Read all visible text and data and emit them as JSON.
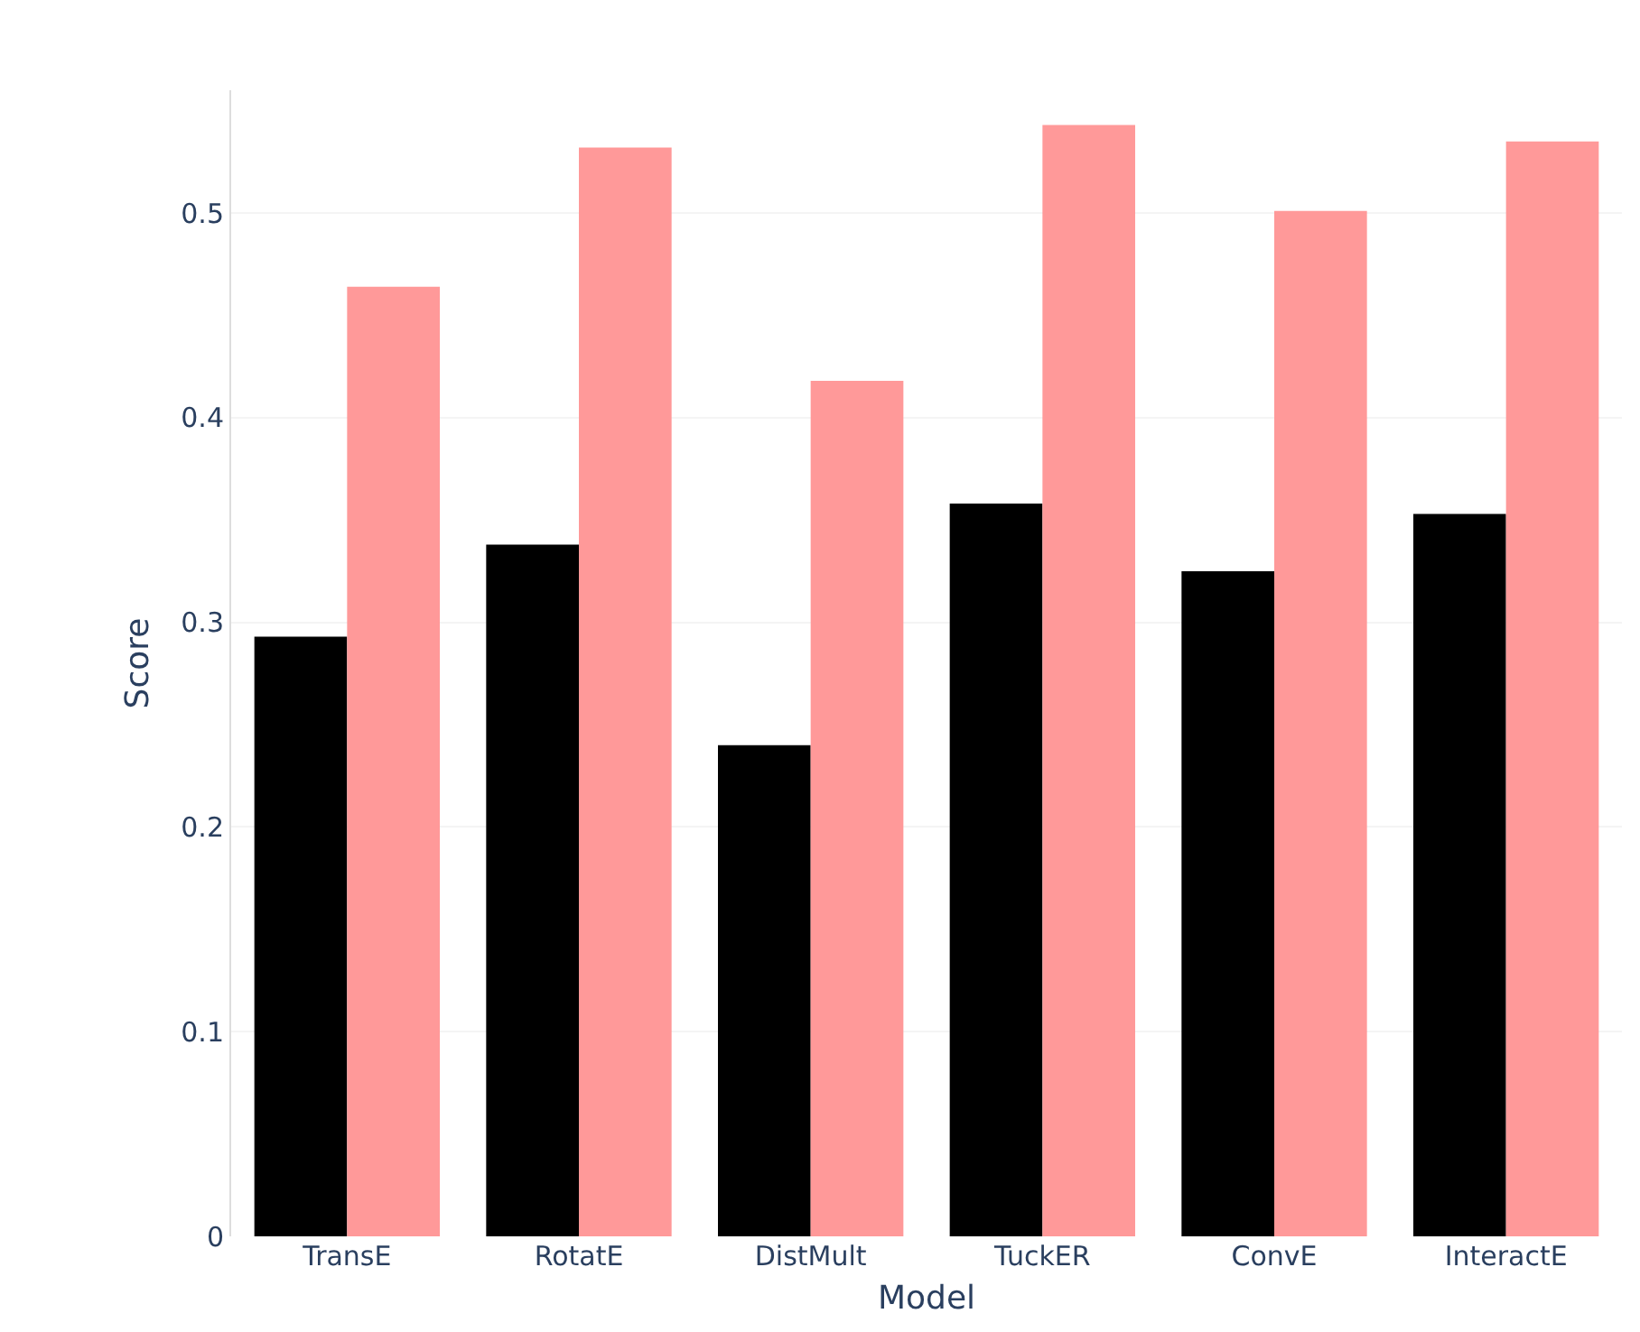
{
  "chart_data": {
    "type": "bar",
    "xlabel": "Model",
    "ylabel": "Score",
    "categories": [
      "TransE",
      "RotatE",
      "DistMult",
      "TuckER",
      "ConvE",
      "InteractE"
    ],
    "series": [
      {
        "color": "#000000",
        "values": [
          0.293,
          0.338,
          0.24,
          0.358,
          0.325,
          0.353
        ]
      },
      {
        "color": "#ff9999",
        "values": [
          0.464,
          0.532,
          0.418,
          0.543,
          0.501,
          0.535
        ]
      }
    ],
    "ylim": [
      0,
      0.56
    ],
    "yticks": [
      0,
      0.1,
      0.2,
      0.3,
      0.4,
      0.5
    ],
    "grid": "y"
  }
}
